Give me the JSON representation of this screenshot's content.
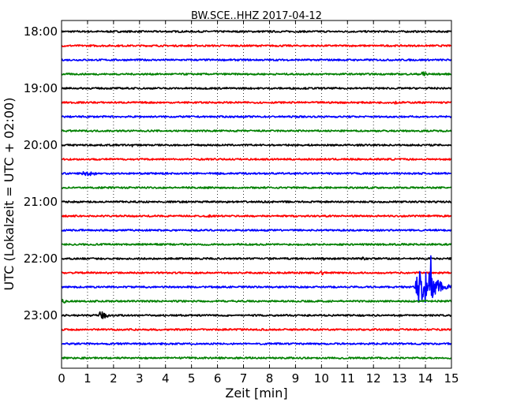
{
  "chart_data": {
    "type": "line",
    "title": "BW.SCE..HHZ 2017-04-12",
    "xlabel": "Zeit  [min]",
    "ylabel": "UTC (Lokalzeit = UTC + 02:00)",
    "xlim": [
      0,
      15
    ],
    "xticks": [
      "0",
      "1",
      "2",
      "3",
      "4",
      "5",
      "6",
      "7",
      "8",
      "9",
      "10",
      "11",
      "12",
      "13",
      "14",
      "15"
    ],
    "yticks": [
      "18:00",
      "19:00",
      "20:00",
      "21:00",
      "22:00",
      "23:00"
    ],
    "grid": "vertical dotted",
    "trace_start_times": [
      "18:00",
      "18:15",
      "18:30",
      "18:45",
      "19:00",
      "19:15",
      "19:30",
      "19:45",
      "20:00",
      "20:15",
      "20:30",
      "20:45",
      "21:00",
      "21:15",
      "21:30",
      "21:45",
      "22:00",
      "22:15",
      "22:30",
      "22:45",
      "23:00",
      "23:15",
      "23:30",
      "23:45"
    ],
    "trace_colors": [
      "#000000",
      "#ff0000",
      "#0000ff",
      "#008000"
    ],
    "noise_amplitude": 0.06,
    "events": [
      {
        "trace": 3,
        "start_min": 13.85,
        "end_min": 14.2,
        "amplitude": 0.35
      },
      {
        "trace": 5,
        "start_min": 12.8,
        "end_min": 13.2,
        "amplitude": 0.12
      },
      {
        "trace": 8,
        "start_min": 2.7,
        "end_min": 2.9,
        "amplitude": 0.12
      },
      {
        "trace": 10,
        "start_min": 0.7,
        "end_min": 1.8,
        "amplitude": 0.15
      },
      {
        "trace": 13,
        "start_min": 5.6,
        "end_min": 5.8,
        "amplitude": 0.12
      },
      {
        "trace": 16,
        "start_min": 10.0,
        "end_min": 10.2,
        "amplitude": 0.12
      },
      {
        "trace": 16,
        "start_min": 11.5,
        "end_min": 11.9,
        "amplitude": 0.12
      },
      {
        "trace": 17,
        "start_min": 9.9,
        "end_min": 10.3,
        "amplitude": 0.15
      },
      {
        "trace": 18,
        "start_min": 13.55,
        "end_min": 15.0,
        "amplitude": 1.1
      },
      {
        "trace": 19,
        "start_min": 0.0,
        "end_min": 0.3,
        "amplitude": 0.15
      },
      {
        "trace": 20,
        "start_min": 1.4,
        "end_min": 2.0,
        "amplitude": 0.25
      }
    ],
    "spikes": [
      {
        "trace": 18,
        "time_min": 14.2,
        "max": 2.2,
        "min": -2.3
      }
    ]
  }
}
